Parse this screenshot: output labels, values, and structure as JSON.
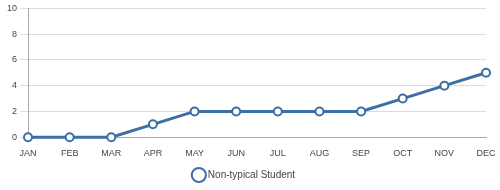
{
  "chart_data": {
    "type": "line",
    "categories": [
      "JAN",
      "FEB",
      "MAR",
      "APR",
      "MAY",
      "JUN",
      "JUL",
      "AUG",
      "SEP",
      "OCT",
      "NOV",
      "DEC"
    ],
    "series": [
      {
        "name": "Non-typical Student",
        "color": "#3b6fa6",
        "marker": "circle",
        "values": [
          0,
          0,
          0,
          1,
          2,
          2,
          2,
          2,
          2,
          3,
          4,
          5
        ]
      }
    ],
    "ylim": [
      0,
      10
    ],
    "yticks": [
      0,
      2,
      4,
      6,
      8,
      10
    ],
    "grid": "y",
    "legend": "bottom"
  }
}
